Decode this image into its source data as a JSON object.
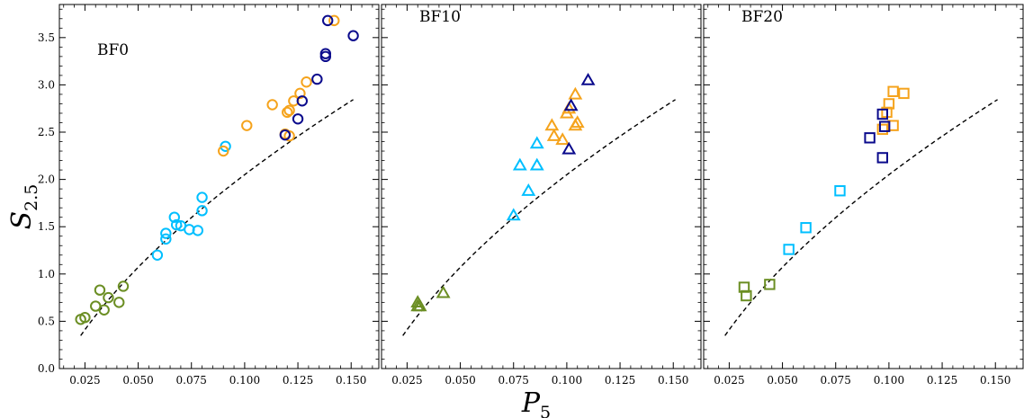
{
  "chart_data": {
    "type": "scatter",
    "ylabel": "S",
    "ylabel_sub": "2.5",
    "xlabel": "P",
    "xlabel_sub": "5",
    "ylim": [
      0.0,
      3.85
    ],
    "xlim": [
      0.013,
      0.163
    ],
    "yticks": [
      "0.0",
      "0.5",
      "1.0",
      "1.5",
      "2.0",
      "2.5",
      "3.0",
      "3.5"
    ],
    "xticks": [
      "0.025",
      "0.050",
      "0.075",
      "0.100",
      "0.125",
      "0.150"
    ],
    "shared_y": true,
    "colors": {
      "green": "#6b8e23",
      "sky": "#00bfff",
      "orange": "#f5a31c",
      "navy": "#0a0a8c"
    },
    "panels": [
      {
        "label": "BF0",
        "marker": "circle",
        "fit": {
          "a": 3.0,
          "p": 0.57,
          "b": -0.95,
          "x_range": [
            0.023,
            0.151
          ]
        },
        "series": [
          {
            "color": "green",
            "points": [
              [
                0.023,
                0.52
              ],
              [
                0.025,
                0.54
              ],
              [
                0.03,
                0.66
              ],
              [
                0.032,
                0.83
              ],
              [
                0.034,
                0.62
              ],
              [
                0.036,
                0.75
              ],
              [
                0.041,
                0.7
              ],
              [
                0.043,
                0.87
              ]
            ]
          },
          {
            "color": "sky",
            "points": [
              [
                0.059,
                1.2
              ],
              [
                0.063,
                1.37
              ],
              [
                0.063,
                1.43
              ],
              [
                0.067,
                1.6
              ],
              [
                0.068,
                1.52
              ],
              [
                0.07,
                1.51
              ],
              [
                0.074,
                1.47
              ],
              [
                0.078,
                1.46
              ],
              [
                0.08,
                1.67
              ],
              [
                0.08,
                1.81
              ],
              [
                0.091,
                2.35
              ]
            ]
          },
          {
            "color": "orange",
            "points": [
              [
                0.09,
                2.3
              ],
              [
                0.101,
                2.57
              ],
              [
                0.113,
                2.79
              ],
              [
                0.119,
                2.48
              ],
              [
                0.12,
                2.71
              ],
              [
                0.121,
                2.73
              ],
              [
                0.121,
                2.46
              ],
              [
                0.123,
                2.83
              ],
              [
                0.126,
                2.91
              ],
              [
                0.129,
                3.03
              ],
              [
                0.142,
                3.68
              ]
            ]
          },
          {
            "color": "navy",
            "points": [
              [
                0.119,
                2.47
              ],
              [
                0.125,
                2.64
              ],
              [
                0.127,
                2.83
              ],
              [
                0.134,
                3.06
              ],
              [
                0.138,
                3.3
              ],
              [
                0.138,
                3.33
              ],
              [
                0.139,
                3.68
              ],
              [
                0.151,
                3.52
              ]
            ]
          }
        ]
      },
      {
        "label": "BF10",
        "marker": "triangle",
        "fit": {
          "a": 3.0,
          "p": 0.57,
          "b": -0.95,
          "x_range": [
            0.023,
            0.151
          ]
        },
        "series": [
          {
            "color": "green",
            "points": [
              [
                0.03,
                0.7
              ],
              [
                0.03,
                0.66
              ],
              [
                0.031,
                0.66
              ],
              [
                0.042,
                0.8
              ]
            ]
          },
          {
            "color": "sky",
            "points": [
              [
                0.075,
                1.62
              ],
              [
                0.078,
                2.15
              ],
              [
                0.082,
                1.88
              ],
              [
                0.086,
                2.38
              ],
              [
                0.086,
                2.15
              ]
            ]
          },
          {
            "color": "orange",
            "points": [
              [
                0.093,
                2.57
              ],
              [
                0.094,
                2.46
              ],
              [
                0.098,
                2.42
              ],
              [
                0.1,
                2.7
              ],
              [
                0.101,
                2.75
              ],
              [
                0.104,
                2.9
              ],
              [
                0.104,
                2.57
              ],
              [
                0.105,
                2.6
              ]
            ]
          },
          {
            "color": "navy",
            "points": [
              [
                0.101,
                2.32
              ],
              [
                0.102,
                2.78
              ],
              [
                0.11,
                3.05
              ]
            ]
          }
        ]
      },
      {
        "label": "BF20",
        "marker": "square",
        "fit": {
          "a": 3.0,
          "p": 0.57,
          "b": -0.95,
          "x_range": [
            0.023,
            0.151
          ]
        },
        "series": [
          {
            "color": "green",
            "points": [
              [
                0.032,
                0.86
              ],
              [
                0.033,
                0.77
              ],
              [
                0.044,
                0.89
              ]
            ]
          },
          {
            "color": "sky",
            "points": [
              [
                0.053,
                1.26
              ],
              [
                0.061,
                1.49
              ],
              [
                0.077,
                1.88
              ]
            ]
          },
          {
            "color": "orange",
            "points": [
              [
                0.097,
                2.53
              ],
              [
                0.099,
                2.71
              ],
              [
                0.1,
                2.8
              ],
              [
                0.102,
                2.93
              ],
              [
                0.102,
                2.57
              ],
              [
                0.107,
                2.91
              ]
            ]
          },
          {
            "color": "navy",
            "points": [
              [
                0.091,
                2.44
              ],
              [
                0.097,
                2.23
              ],
              [
                0.097,
                2.69
              ],
              [
                0.098,
                2.56
              ]
            ]
          }
        ]
      }
    ]
  }
}
